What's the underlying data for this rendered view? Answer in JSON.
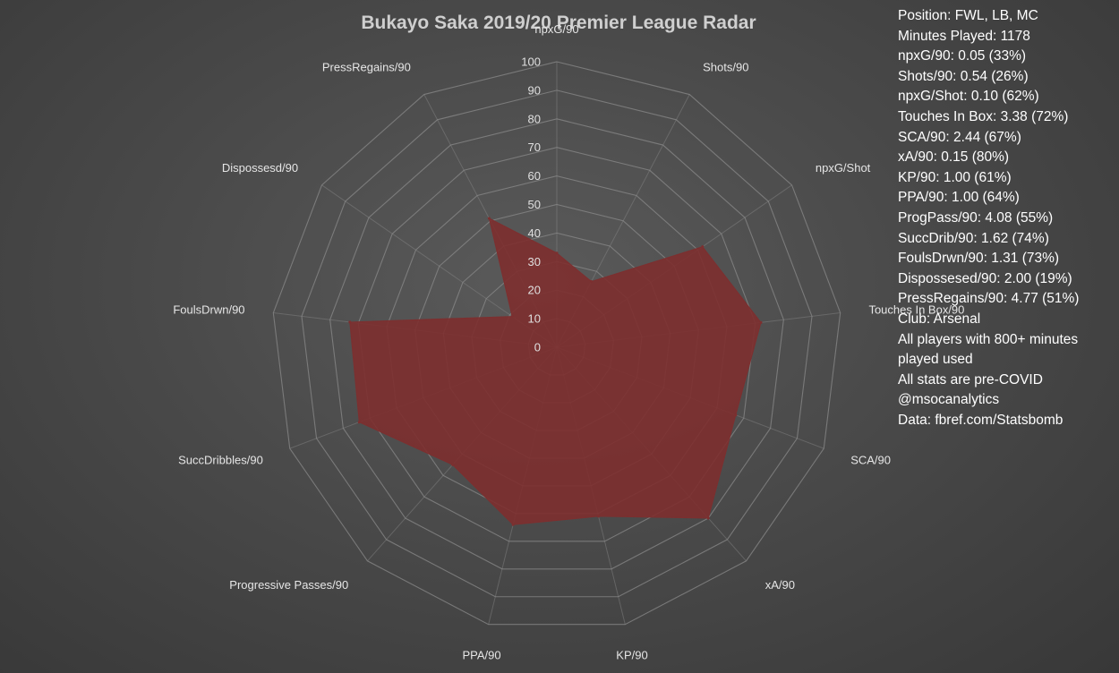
{
  "colors": {
    "fill": "#7d2f2f",
    "grid": "#8a8a8a",
    "text": "#ffffff"
  },
  "chart_data": {
    "type": "radar",
    "title": "Bukayo Saka 2019/20 Premier League Radar",
    "rlim": [
      0,
      100
    ],
    "r_ticks": [
      0,
      10,
      20,
      30,
      40,
      50,
      60,
      70,
      80,
      90,
      100
    ],
    "grid": true,
    "axes": [
      "npxG/90",
      "Shots/90",
      "npxG/Shot",
      "Touches In Box/90",
      "SCA/90",
      "xA/90",
      "KP/90",
      "PPA/90",
      "Progressive Passes/90",
      "SuccDribbles/90",
      "FoulsDrwn/90",
      "Dispossesd/90",
      "PressRegains/90"
    ],
    "series": [
      {
        "values": [
          33,
          26,
          62,
          72,
          67,
          80,
          61,
          64,
          55,
          74,
          73,
          19,
          51
        ]
      }
    ]
  },
  "info": {
    "lines": [
      "Position: FWL, LB, MC",
      "Minutes Played: 1178",
      "npxG/90: 0.05 (33%)",
      "Shots/90: 0.54 (26%)",
      "npxG/Shot: 0.10 (62%)",
      "Touches In Box: 3.38 (72%)",
      "SCA/90: 2.44 (67%)",
      "xA/90: 0.15 (80%)",
      "KP/90: 1.00 (61%)",
      "PPA/90: 1.00 (64%)",
      "ProgPass/90: 4.08 (55%)",
      "SuccDrib/90: 1.62 (74%)",
      "FoulsDrwn/90: 1.31 (73%)",
      "Dispossesed/90: 2.00 (19%)",
      "PressRegains/90: 4.77 (51%)",
      "Club: Arsenal",
      "All players with 800+ minutes played used",
      "All stats are pre-COVID",
      "@msocanalytics",
      "Data: fbref.com/Statsbomb"
    ]
  }
}
